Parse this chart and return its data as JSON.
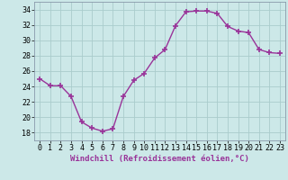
{
  "x": [
    0,
    1,
    2,
    3,
    4,
    5,
    6,
    7,
    8,
    9,
    10,
    11,
    12,
    13,
    14,
    15,
    16,
    17,
    18,
    19,
    20,
    21,
    22,
    23
  ],
  "y": [
    25.0,
    24.1,
    24.1,
    22.7,
    19.4,
    18.6,
    18.2,
    18.5,
    22.7,
    24.8,
    25.7,
    27.7,
    28.8,
    31.9,
    33.7,
    33.8,
    33.8,
    33.5,
    31.8,
    31.2,
    31.0,
    28.8,
    28.4,
    28.3
  ],
  "line_color": "#993399",
  "marker": "+",
  "marker_size": 4,
  "marker_lw": 1.2,
  "line_width": 1.0,
  "xlabel": "Windchill (Refroidissement éolien,°C)",
  "xlabel_fontsize": 6.5,
  "ylim": [
    17,
    35
  ],
  "yticks": [
    18,
    20,
    22,
    24,
    26,
    28,
    30,
    32,
    34
  ],
  "xticks": [
    0,
    1,
    2,
    3,
    4,
    5,
    6,
    7,
    8,
    9,
    10,
    11,
    12,
    13,
    14,
    15,
    16,
    17,
    18,
    19,
    20,
    21,
    22,
    23
  ],
  "tick_fontsize": 6.0,
  "background_color": "#cce8e8",
  "grid_color": "#aacccc",
  "plot_bg_color": "#cce8e8",
  "spine_color": "#8899aa"
}
